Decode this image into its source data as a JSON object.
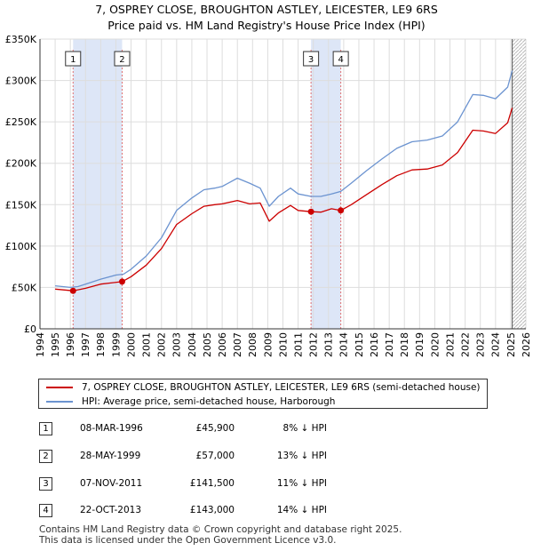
{
  "title_line1": "7, OSPREY CLOSE, BROUGHTON ASTLEY, LEICESTER, LE9 6RS",
  "title_line2": "Price paid vs. HM Land Registry's House Price Index (HPI)",
  "colors": {
    "price": "#cc0000",
    "hpi": "#6b93d0",
    "band": "#dde6f7",
    "grid": "#dddddd",
    "dashed": "#e07070"
  },
  "chart_data": {
    "type": "line",
    "xlabel": "",
    "ylabel": "",
    "xlim": [
      1994,
      2026
    ],
    "ylim": [
      0,
      350000
    ],
    "y_ticks": [
      0,
      50000,
      100000,
      150000,
      200000,
      250000,
      300000,
      350000
    ],
    "y_tick_labels": [
      "£0",
      "£50K",
      "£100K",
      "£150K",
      "£200K",
      "£250K",
      "£300K",
      "£350K"
    ],
    "x_ticks": [
      1994,
      1995,
      1996,
      1997,
      1998,
      1999,
      2000,
      2001,
      2002,
      2003,
      2004,
      2005,
      2006,
      2007,
      2008,
      2009,
      2010,
      2011,
      2012,
      2013,
      2014,
      2015,
      2016,
      2017,
      2018,
      2019,
      2020,
      2021,
      2022,
      2023,
      2024,
      2025,
      2026
    ],
    "shaded_ranges": [
      [
        1996.18,
        1999.41
      ],
      [
        2011.85,
        2013.81
      ]
    ],
    "data_end": 2025.1,
    "series": [
      {
        "name": "hpi",
        "label": "HPI: Average price, semi-detached house, Harborough",
        "x": [
          1995,
          1996,
          1996.5,
          1997,
          1998,
          1999,
          1999.5,
          2000,
          2001,
          2002,
          2003,
          2004,
          2004.8,
          2005.5,
          2006,
          2007,
          2007.8,
          2008.5,
          2009.1,
          2009.7,
          2010.5,
          2011,
          2011.85,
          2012.5,
          2013.2,
          2013.81,
          2014.5,
          2015.5,
          2016.5,
          2017.5,
          2018.5,
          2019.5,
          2020.5,
          2021.5,
          2022.5,
          2023.2,
          2024,
          2024.8,
          2025.1
        ],
        "values": [
          52000,
          50000,
          51000,
          54000,
          60000,
          65000,
          66000,
          72000,
          88000,
          110000,
          143000,
          158000,
          168000,
          170000,
          172000,
          182000,
          176000,
          170000,
          148000,
          160000,
          170000,
          163000,
          160000,
          160000,
          163000,
          166000,
          176000,
          191000,
          205000,
          218000,
          226000,
          228000,
          233000,
          250000,
          283000,
          282000,
          278000,
          292000,
          312000
        ]
      },
      {
        "name": "price",
        "label": "7, OSPREY CLOSE, BROUGHTON ASTLEY, LEICESTER, LE9 6RS (semi-detached house)",
        "x": [
          1995,
          1996.18,
          1997,
          1998,
          1999.41,
          2000,
          2001,
          2002,
          2003,
          2004,
          2004.8,
          2005.5,
          2006,
          2007,
          2007.8,
          2008.5,
          2009.1,
          2009.7,
          2010.5,
          2011,
          2011.85,
          2012.5,
          2013.2,
          2013.81,
          2014.5,
          2015.5,
          2016.5,
          2017.5,
          2018.5,
          2019.5,
          2020.5,
          2021.5,
          2022.5,
          2023.2,
          2024,
          2024.8,
          2025.1
        ],
        "values": [
          48000,
          45900,
          49000,
          54000,
          57000,
          63000,
          77000,
          97000,
          126000,
          139000,
          148000,
          150000,
          151000,
          155000,
          151000,
          152000,
          130000,
          140000,
          149000,
          143000,
          141500,
          141000,
          145000,
          143000,
          150000,
          162000,
          174000,
          185000,
          192000,
          193000,
          198000,
          213000,
          240000,
          239000,
          236000,
          249000,
          267000
        ]
      }
    ],
    "sales": [
      {
        "n": "1",
        "x": 1996.18,
        "value": 45900
      },
      {
        "n": "2",
        "x": 1999.41,
        "value": 57000
      },
      {
        "n": "3",
        "x": 2011.85,
        "value": 141500
      },
      {
        "n": "4",
        "x": 2013.81,
        "value": 143000
      }
    ]
  },
  "legend": {
    "price_label": "7, OSPREY CLOSE, BROUGHTON ASTLEY, LEICESTER, LE9 6RS (semi-detached house)",
    "hpi_label": "HPI: Average price, semi-detached house, Harborough"
  },
  "transactions": [
    {
      "n": "1",
      "date": "08-MAR-1996",
      "price": "£45,900",
      "hpi": "8% ↓ HPI"
    },
    {
      "n": "2",
      "date": "28-MAY-1999",
      "price": "£57,000",
      "hpi": "13% ↓ HPI"
    },
    {
      "n": "3",
      "date": "07-NOV-2011",
      "price": "£141,500",
      "hpi": "11% ↓ HPI"
    },
    {
      "n": "4",
      "date": "22-OCT-2013",
      "price": "£143,000",
      "hpi": "14% ↓ HPI"
    }
  ],
  "footer_line1": "Contains HM Land Registry data © Crown copyright and database right 2025.",
  "footer_line2": "This data is licensed under the Open Government Licence v3.0."
}
